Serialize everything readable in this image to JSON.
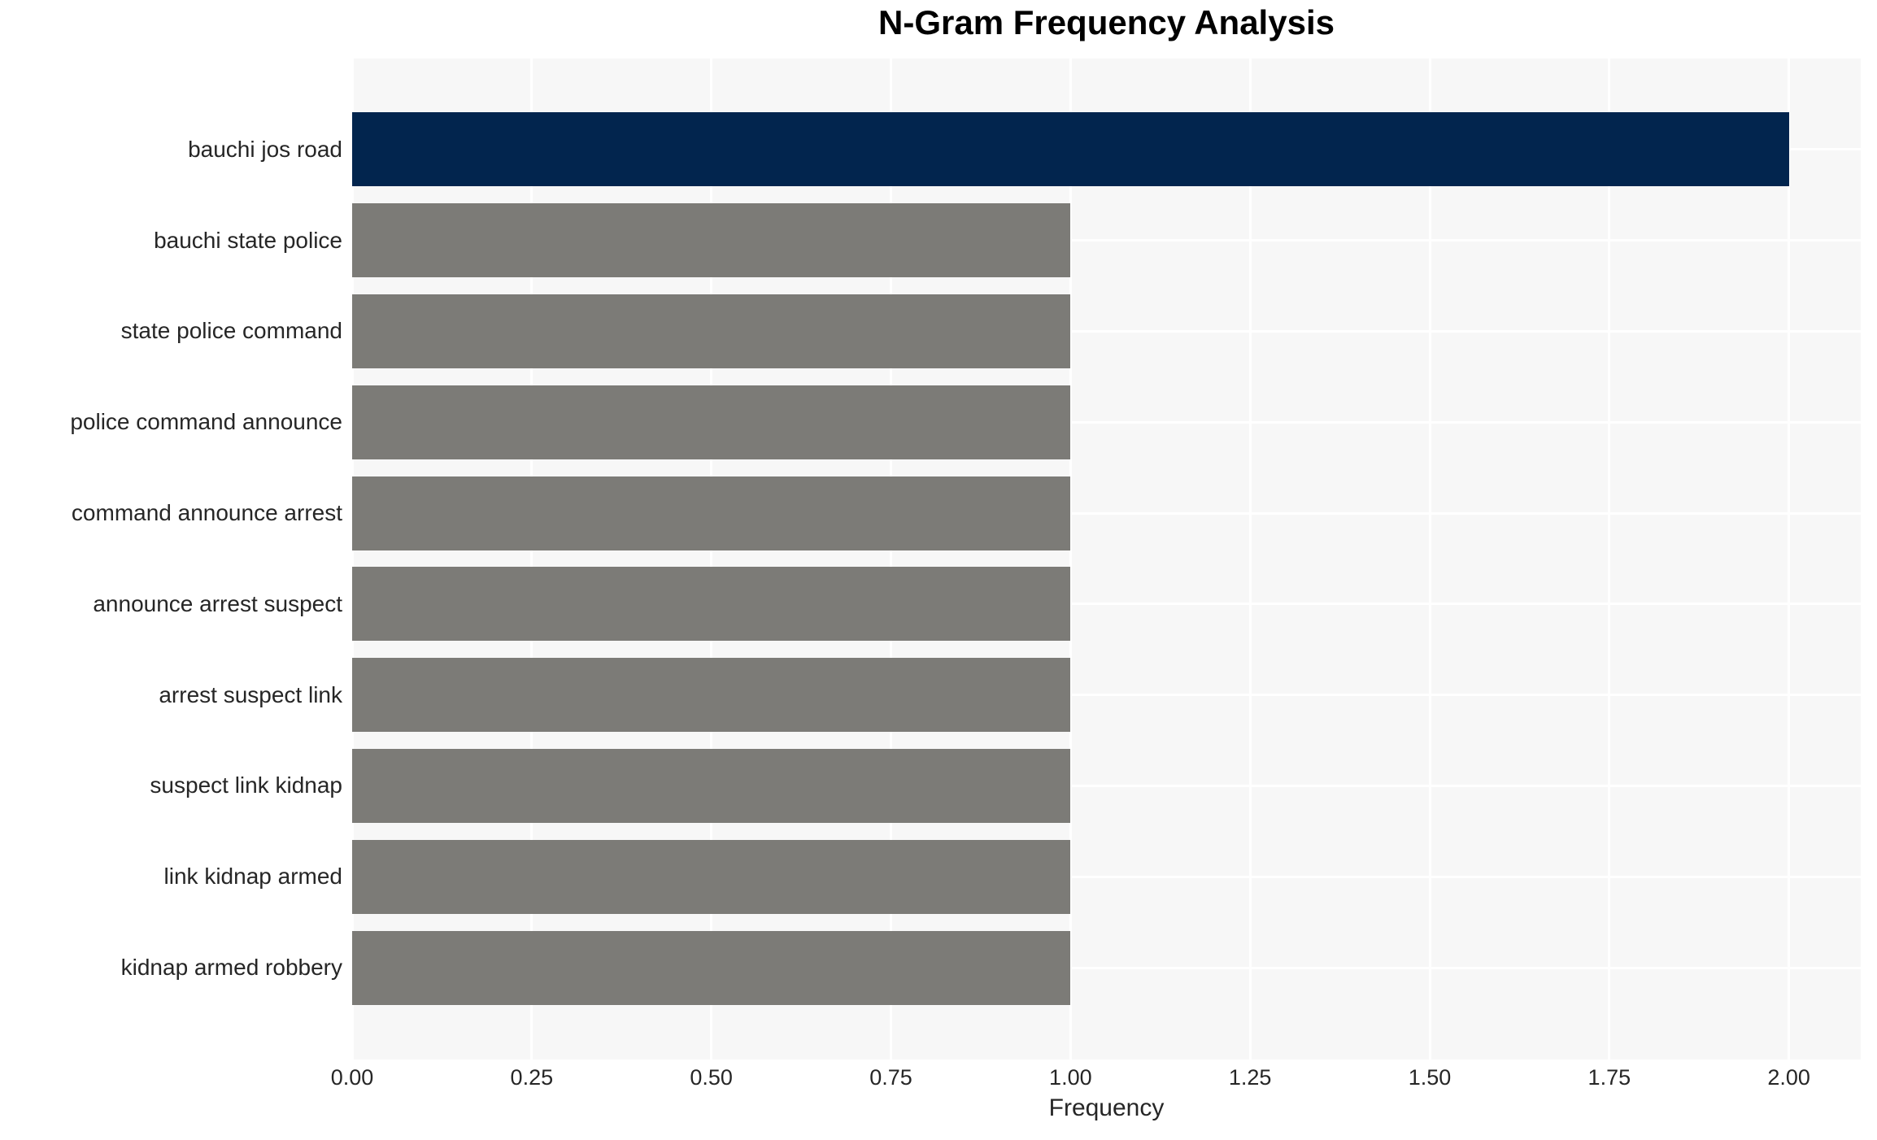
{
  "chart_data": {
    "type": "bar",
    "orientation": "horizontal",
    "title": "N-Gram Frequency Analysis",
    "xlabel": "Frequency",
    "ylabel": "",
    "categories": [
      "bauchi jos road",
      "bauchi state police",
      "state police command",
      "police command announce",
      "command announce arrest",
      "announce arrest suspect",
      "arrest suspect link",
      "suspect link kidnap",
      "link kidnap armed",
      "kidnap armed robbery"
    ],
    "values": [
      2,
      1,
      1,
      1,
      1,
      1,
      1,
      1,
      1,
      1
    ],
    "xlim": [
      0,
      2.1
    ],
    "xticks": [
      "0.00",
      "0.25",
      "0.50",
      "0.75",
      "1.00",
      "1.25",
      "1.50",
      "1.75",
      "2.00"
    ],
    "xtick_values": [
      0,
      0.25,
      0.5,
      0.75,
      1.0,
      1.25,
      1.5,
      1.75,
      2.0
    ],
    "grid": true,
    "legend": false,
    "bar_colors": [
      "#02254e",
      "#7c7b77",
      "#7c7b77",
      "#7c7b77",
      "#7c7b77",
      "#7c7b77",
      "#7c7b77",
      "#7c7b77",
      "#7c7b77",
      "#7c7b77"
    ],
    "colors": {
      "highlight_bar": "#02254e",
      "default_bar": "#7c7b77",
      "plot_background": "#f7f7f7",
      "gridline": "#ffffff",
      "tick_text": "#262626",
      "title_text": "#000000"
    }
  }
}
